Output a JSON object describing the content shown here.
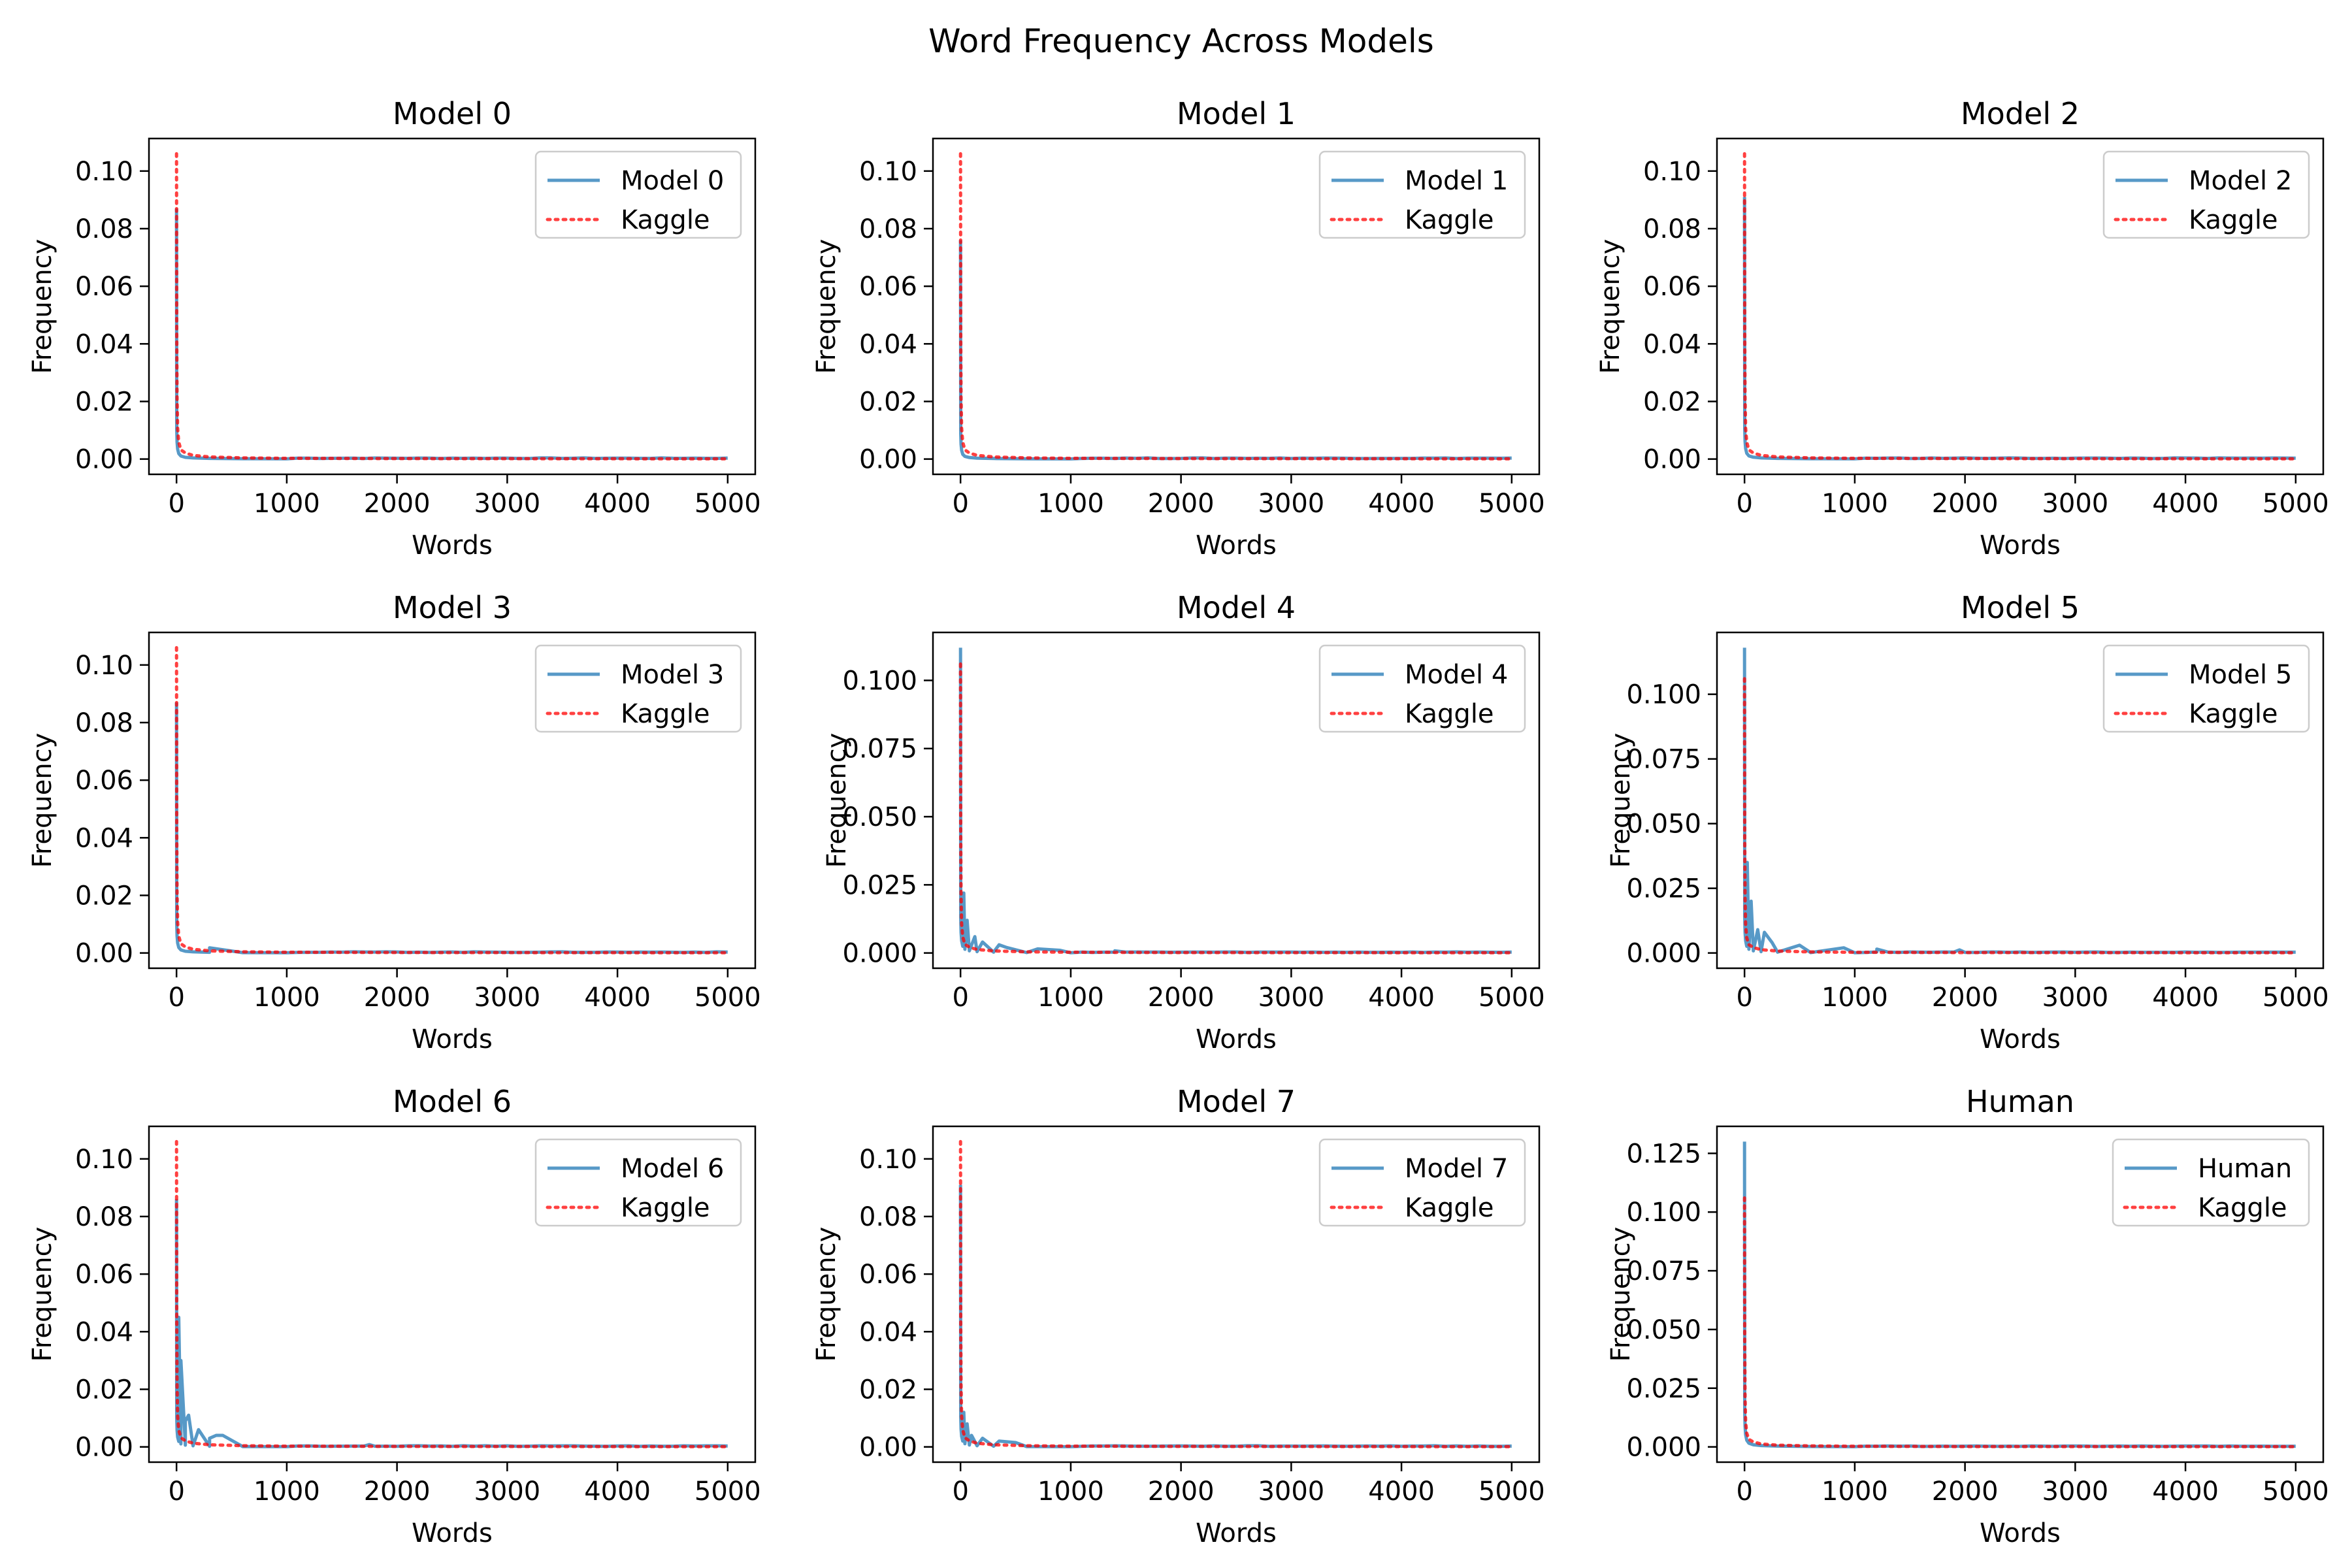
{
  "title": "Word Frequency Across Models",
  "colors": {
    "model": "#1f77b4",
    "kaggle": "#ff0000"
  },
  "chart_data": [
    {
      "type": "line",
      "title": "Model 0",
      "xlabel": "Words",
      "ylabel": "Frequency",
      "xlim": [
        -250,
        5250
      ],
      "ylim": [
        -0.0053,
        0.1113
      ],
      "xticks": [
        0,
        1000,
        2000,
        3000,
        4000,
        5000
      ],
      "yticks": [
        0.0,
        0.02,
        0.04,
        0.06,
        0.08,
        0.1
      ],
      "ytick_labels": [
        "0.00",
        "0.02",
        "0.04",
        "0.06",
        "0.08",
        "0.10"
      ],
      "legend": "top-right",
      "grid": false,
      "series": [
        {
          "name": "Model 0",
          "style": "solid",
          "peak": 0.087,
          "noise": []
        },
        {
          "name": "Kaggle",
          "style": "dotted",
          "peak": 0.106
        }
      ]
    },
    {
      "type": "line",
      "title": "Model 1",
      "xlabel": "Words",
      "ylabel": "Frequency",
      "xlim": [
        -250,
        5250
      ],
      "ylim": [
        -0.0053,
        0.1113
      ],
      "xticks": [
        0,
        1000,
        2000,
        3000,
        4000,
        5000
      ],
      "yticks": [
        0.0,
        0.02,
        0.04,
        0.06,
        0.08,
        0.1
      ],
      "ytick_labels": [
        "0.00",
        "0.02",
        "0.04",
        "0.06",
        "0.08",
        "0.10"
      ],
      "legend": "top-right",
      "grid": false,
      "series": [
        {
          "name": "Model 1",
          "style": "solid",
          "peak": 0.076,
          "noise": []
        },
        {
          "name": "Kaggle",
          "style": "dotted",
          "peak": 0.106
        }
      ]
    },
    {
      "type": "line",
      "title": "Model 2",
      "xlabel": "Words",
      "ylabel": "Frequency",
      "xlim": [
        -250,
        5250
      ],
      "ylim": [
        -0.0053,
        0.1113
      ],
      "xticks": [
        0,
        1000,
        2000,
        3000,
        4000,
        5000
      ],
      "yticks": [
        0.0,
        0.02,
        0.04,
        0.06,
        0.08,
        0.1
      ],
      "ytick_labels": [
        "0.00",
        "0.02",
        "0.04",
        "0.06",
        "0.08",
        "0.10"
      ],
      "legend": "top-right",
      "grid": false,
      "series": [
        {
          "name": "Model 2",
          "style": "solid",
          "peak": 0.091,
          "noise": []
        },
        {
          "name": "Kaggle",
          "style": "dotted",
          "peak": 0.106
        }
      ]
    },
    {
      "type": "line",
      "title": "Model 3",
      "xlabel": "Words",
      "ylabel": "Frequency",
      "xlim": [
        -250,
        5250
      ],
      "ylim": [
        -0.0053,
        0.1113
      ],
      "xticks": [
        0,
        1000,
        2000,
        3000,
        4000,
        5000
      ],
      "yticks": [
        0.0,
        0.02,
        0.04,
        0.06,
        0.08,
        0.1
      ],
      "ytick_labels": [
        "0.00",
        "0.02",
        "0.04",
        "0.06",
        "0.08",
        "0.10"
      ],
      "legend": "top-right",
      "grid": false,
      "series": [
        {
          "name": "Model 3",
          "style": "solid",
          "peak": 0.087,
          "noise": [
            [
              300,
              0.0018
            ]
          ]
        },
        {
          "name": "Kaggle",
          "style": "dotted",
          "peak": 0.106
        }
      ]
    },
    {
      "type": "line",
      "title": "Model 4",
      "xlabel": "Words",
      "ylabel": "Frequency",
      "xlim": [
        -250,
        5250
      ],
      "ylim": [
        -0.0056,
        0.1176
      ],
      "xticks": [
        0,
        1000,
        2000,
        3000,
        4000,
        5000
      ],
      "yticks": [
        0.0,
        0.025,
        0.05,
        0.075,
        0.1
      ],
      "ytick_labels": [
        "0.000",
        "0.025",
        "0.050",
        "0.075",
        "0.100"
      ],
      "legend": "top-right",
      "grid": false,
      "series": [
        {
          "name": "Model 4",
          "style": "solid",
          "peak": 0.112,
          "noise": [
            [
              30,
              0.022
            ],
            [
              60,
              0.012
            ],
            [
              130,
              0.006
            ],
            [
              200,
              0.004
            ],
            [
              350,
              0.003
            ],
            [
              420,
              0.002
            ],
            [
              700,
              0.0015
            ],
            [
              900,
              0.001
            ],
            [
              1400,
              0.0008
            ]
          ]
        },
        {
          "name": "Kaggle",
          "style": "dotted",
          "peak": 0.106
        }
      ]
    },
    {
      "type": "line",
      "title": "Model 5",
      "xlabel": "Words",
      "ylabel": "Frequency",
      "xlim": [
        -250,
        5250
      ],
      "ylim": [
        -0.0059,
        0.1239
      ],
      "xticks": [
        0,
        1000,
        2000,
        3000,
        4000,
        5000
      ],
      "yticks": [
        0.0,
        0.025,
        0.05,
        0.075,
        0.1
      ],
      "ytick_labels": [
        "0.000",
        "0.025",
        "0.050",
        "0.075",
        "0.100"
      ],
      "legend": "top-right",
      "grid": false,
      "series": [
        {
          "name": "Model 5",
          "style": "solid",
          "peak": 0.118,
          "noise": [
            [
              25,
              0.035
            ],
            [
              60,
              0.02
            ],
            [
              120,
              0.009
            ],
            [
              180,
              0.008
            ],
            [
              250,
              0.004
            ],
            [
              500,
              0.003
            ],
            [
              900,
              0.002
            ],
            [
              1200,
              0.0015
            ],
            [
              1950,
              0.0012
            ]
          ]
        },
        {
          "name": "Kaggle",
          "style": "dotted",
          "peak": 0.106
        }
      ]
    },
    {
      "type": "line",
      "title": "Model 6",
      "xlabel": "Words",
      "ylabel": "Frequency",
      "xlim": [
        -250,
        5250
      ],
      "ylim": [
        -0.0053,
        0.1113
      ],
      "xticks": [
        0,
        1000,
        2000,
        3000,
        4000,
        5000
      ],
      "yticks": [
        0.0,
        0.02,
        0.04,
        0.06,
        0.08,
        0.1
      ],
      "ytick_labels": [
        "0.00",
        "0.02",
        "0.04",
        "0.06",
        "0.08",
        "0.10"
      ],
      "legend": "top-right",
      "grid": false,
      "series": [
        {
          "name": "Model 6",
          "style": "solid",
          "peak": 0.086,
          "noise": [
            [
              20,
              0.045
            ],
            [
              40,
              0.03
            ],
            [
              80,
              0.009
            ],
            [
              110,
              0.011
            ],
            [
              200,
              0.006
            ],
            [
              300,
              0.003
            ],
            [
              360,
              0.004
            ],
            [
              420,
              0.004
            ],
            [
              1750,
              0.0008
            ]
          ]
        },
        {
          "name": "Kaggle",
          "style": "dotted",
          "peak": 0.106
        }
      ]
    },
    {
      "type": "line",
      "title": "Model 7",
      "xlabel": "Words",
      "ylabel": "Frequency",
      "xlim": [
        -250,
        5250
      ],
      "ylim": [
        -0.0053,
        0.1113
      ],
      "xticks": [
        0,
        1000,
        2000,
        3000,
        4000,
        5000
      ],
      "yticks": [
        0.0,
        0.02,
        0.04,
        0.06,
        0.08,
        0.1
      ],
      "ytick_labels": [
        "0.00",
        "0.02",
        "0.04",
        "0.06",
        "0.08",
        "0.10"
      ],
      "legend": "top-right",
      "grid": false,
      "series": [
        {
          "name": "Model 7",
          "style": "solid",
          "peak": 0.091,
          "noise": [
            [
              30,
              0.012
            ],
            [
              60,
              0.008
            ],
            [
              100,
              0.004
            ],
            [
              200,
              0.003
            ],
            [
              350,
              0.002
            ],
            [
              500,
              0.0015
            ]
          ]
        },
        {
          "name": "Kaggle",
          "style": "dotted",
          "peak": 0.106
        }
      ]
    },
    {
      "type": "line",
      "title": "Human",
      "xlabel": "Words",
      "ylabel": "Frequency",
      "xlim": [
        -250,
        5250
      ],
      "ylim": [
        -0.0065,
        0.1365
      ],
      "xticks": [
        0,
        1000,
        2000,
        3000,
        4000,
        5000
      ],
      "yticks": [
        0.0,
        0.025,
        0.05,
        0.075,
        0.1,
        0.125
      ],
      "ytick_labels": [
        "0.000",
        "0.025",
        "0.050",
        "0.075",
        "0.100",
        "0.125"
      ],
      "legend": "top-right",
      "grid": false,
      "series": [
        {
          "name": "Human",
          "style": "solid",
          "peak": 0.13,
          "noise": []
        },
        {
          "name": "Kaggle",
          "style": "dotted",
          "peak": 0.106
        }
      ]
    }
  ]
}
